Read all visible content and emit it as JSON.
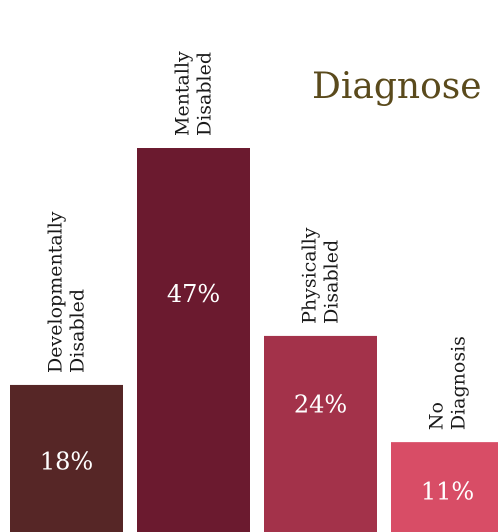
{
  "chart_data": {
    "type": "bar",
    "title": "Diagnose",
    "categories": [
      [
        "Developmentally",
        "Disabled"
      ],
      [
        "Mentally",
        "Disabled"
      ],
      [
        "Physically",
        "Disabled"
      ],
      [
        "No",
        "Diagnosis"
      ]
    ],
    "values": [
      18,
      47,
      24,
      11
    ],
    "value_labels": [
      "18%",
      "47%",
      "24%",
      "11%"
    ],
    "colors": [
      "#562626",
      "#6b1a2f",
      "#a3324a",
      "#d84d66"
    ],
    "ylim": [
      0,
      50
    ],
    "grid": false,
    "legend": "none"
  }
}
